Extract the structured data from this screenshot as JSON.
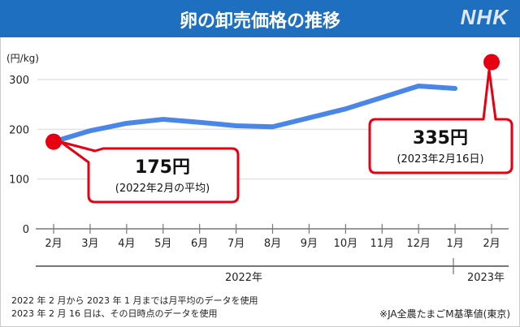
{
  "header": {
    "title": "卵の卸売価格の推移",
    "logo": "NHK"
  },
  "chart_data": {
    "type": "line",
    "title": "卵の卸売価格の推移",
    "ylabel": "(円/kg)",
    "ylim": [
      0,
      300
    ],
    "yticks": [
      0,
      100,
      200,
      300
    ],
    "categories": [
      "2月",
      "3月",
      "4月",
      "5月",
      "6月",
      "7月",
      "8月",
      "9月",
      "10月",
      "11月",
      "12月",
      "1月",
      "2月"
    ],
    "year_labels": [
      "2022年",
      "2023年"
    ],
    "grid": true,
    "series": [
      {
        "values": [
          175,
          197,
          212,
          220,
          214,
          207,
          205,
          223,
          241,
          264,
          287,
          282,
          null
        ]
      }
    ],
    "highlight_points": [
      {
        "index": 0,
        "value": 175,
        "label": "175円",
        "sublabel": "(2022年2月の平均)"
      },
      {
        "index": 12,
        "value": 335,
        "label": "335円",
        "sublabel": "(2023年2月16日)"
      }
    ],
    "colors": {
      "line": "#4a86e8",
      "point": "#e60012",
      "callout": "#e60012"
    }
  },
  "notes": [
    "2022 年 2 月から 2023 年 1 月までは月平均のデータを使用",
    "2023 年 2 月 16 日は、その日時点のデータを使用"
  ],
  "source": "※JA全農たまごM基準値(東京)"
}
